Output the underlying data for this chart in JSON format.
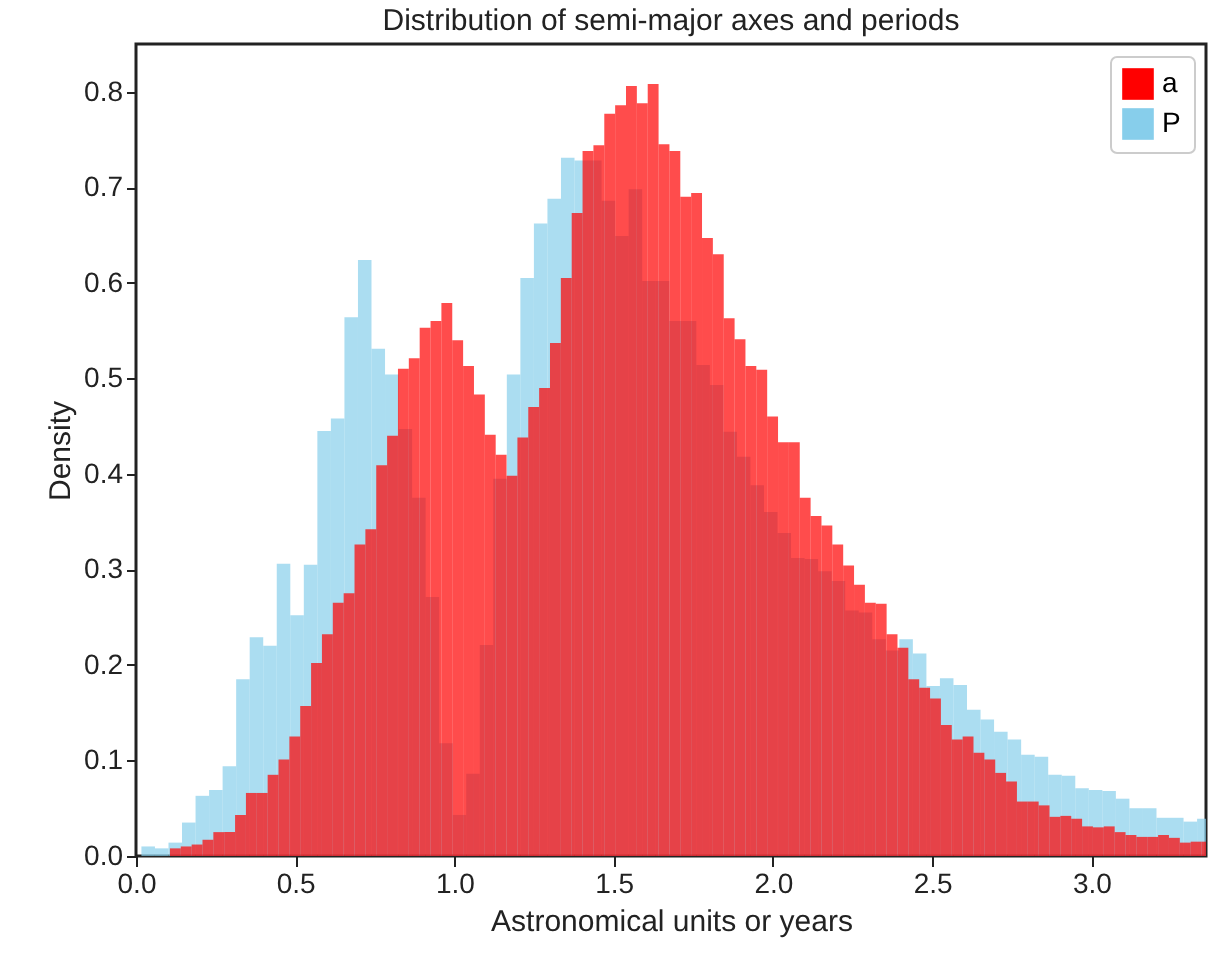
{
  "chart_data": {
    "type": "histogram",
    "title": "Distribution of semi-major axes and periods",
    "xlabel": "Astronomical units or years",
    "ylabel": "Density",
    "xlim": [
      0,
      3.36
    ],
    "ylim": [
      0,
      0.85
    ],
    "xticks": [
      {
        "value": 0,
        "label": "0.0"
      },
      {
        "value": 0.5,
        "label": "0.5"
      },
      {
        "value": 1,
        "label": "1.0"
      },
      {
        "value": 1.5,
        "label": "1.5"
      },
      {
        "value": 2,
        "label": "2.0"
      },
      {
        "value": 2.5,
        "label": "2.5"
      },
      {
        "value": 3,
        "label": "3.0"
      }
    ],
    "yticks": [
      {
        "value": 0,
        "label": "0.0"
      },
      {
        "value": 0.1,
        "label": "0.1"
      },
      {
        "value": 0.2,
        "label": "0.2"
      },
      {
        "value": 0.3,
        "label": "0.3"
      },
      {
        "value": 0.4,
        "label": "0.4"
      },
      {
        "value": 0.5,
        "label": "0.5"
      },
      {
        "value": 0.6,
        "label": "0.6"
      },
      {
        "value": 0.7,
        "label": "0.7"
      },
      {
        "value": 0.8,
        "label": "0.8"
      }
    ],
    "grid": false,
    "legend": "top right",
    "bins": [
      0.1065,
      0.1406,
      0.1747,
      0.2088,
      0.2429,
      0.277,
      0.3111,
      0.3452,
      0.3793,
      0.4134,
      0.4475,
      0.4816,
      0.5157,
      0.5498,
      0.5839,
      0.618,
      0.6521,
      0.6862,
      0.7203,
      0.7544,
      0.7885,
      0.8226,
      0.8567,
      0.8908,
      0.9249,
      0.959,
      0.9931,
      1.0272,
      1.0613,
      1.0954,
      1.1295,
      1.1636,
      1.1977,
      1.2318,
      1.2659,
      1.3,
      1.3341,
      1.3682,
      1.4023,
      1.4364,
      1.4705,
      1.5046,
      1.5387,
      1.5728,
      1.6069,
      1.641,
      1.6751,
      1.7092,
      1.7433,
      1.7774,
      1.8115,
      1.8456,
      1.8797,
      1.9138,
      1.9479,
      1.982,
      2.0161,
      2.0502,
      2.0843,
      2.1184,
      2.1525,
      2.1866,
      2.2207,
      2.2548,
      2.2889,
      2.323,
      2.3571,
      2.3912,
      2.4253,
      2.4594,
      2.4935,
      2.5276,
      2.5617,
      2.5958,
      2.6299,
      2.664,
      2.6981,
      2.7322,
      2.7663,
      2.8004,
      2.8345,
      2.8686,
      2.9027,
      2.9368,
      2.9709,
      3.005,
      3.0391,
      3.0732,
      3.1073,
      3.1414,
      3.1755,
      3.2096,
      3.2437,
      3.2778,
      3.3119,
      3.346,
      3.36
    ],
    "series": [
      {
        "name": "a",
        "color": "#ff0000",
        "values": [
          0.008,
          0.01,
          0.012,
          0.017,
          0.025,
          0.025,
          0.043,
          0.066,
          0.066,
          0.085,
          0.101,
          0.125,
          0.157,
          0.202,
          0.232,
          0.265,
          0.275,
          0.326,
          0.342,
          0.409,
          0.44,
          0.51,
          0.521,
          0.553,
          0.56,
          0.579,
          0.54,
          0.513,
          0.483,
          0.441,
          0.42,
          0.398,
          0.438,
          0.47,
          0.49,
          0.537,
          0.605,
          0.673,
          0.738,
          0.744,
          0.777,
          0.786,
          0.806,
          0.788,
          0.808,
          0.745,
          0.738,
          0.69,
          0.694,
          0.647,
          0.63,
          0.563,
          0.541,
          0.513,
          0.509,
          0.46,
          0.433,
          0.433,
          0.375,
          0.356,
          0.346,
          0.326,
          0.304,
          0.284,
          0.265,
          0.264,
          0.232,
          0.218,
          0.185,
          0.176,
          0.165,
          0.137,
          0.122,
          0.125,
          0.108,
          0.101,
          0.087,
          0.078,
          0.057,
          0.057,
          0.053,
          0.041,
          0.042,
          0.039,
          0.031,
          0.03,
          0.031,
          0.025,
          0.022,
          0.02,
          0.02,
          0.022,
          0.019,
          0.014,
          0.015,
          0.015
        ]
      },
      {
        "name": "P",
        "color": "#87ceeb",
        "bins": [
          0.017,
          0.0595,
          0.102,
          0.1445,
          0.187,
          0.2295,
          0.272,
          0.3145,
          0.357,
          0.3995,
          0.442,
          0.4845,
          0.527,
          0.5695,
          0.612,
          0.6545,
          0.697,
          0.7395,
          0.782,
          0.8245,
          0.867,
          0.9095,
          0.952,
          0.9945,
          1.037,
          1.0795,
          1.122,
          1.1645,
          1.207,
          1.2495,
          1.292,
          1.3345,
          1.377,
          1.4195,
          1.462,
          1.5045,
          1.547,
          1.5895,
          1.632,
          1.6745,
          1.717,
          1.7595,
          1.802,
          1.8445,
          1.887,
          1.9295,
          1.972,
          2.0145,
          2.057,
          2.0995,
          2.142,
          2.1845,
          2.227,
          2.2695,
          2.312,
          2.3545,
          2.397,
          2.4395,
          2.482,
          2.5245,
          2.567,
          2.6095,
          2.652,
          2.6945,
          2.737,
          2.7795,
          2.822,
          2.8645,
          2.907,
          2.9495,
          2.992,
          3.0345,
          3.077,
          3.1195,
          3.162,
          3.2045,
          3.247,
          3.2895,
          3.332,
          3.36
        ],
        "values": [
          0.01,
          0.008,
          0.014,
          0.035,
          0.063,
          0.069,
          0.094,
          0.185,
          0.229,
          0.22,
          0.306,
          0.252,
          0.305,
          0.445,
          0.458,
          0.564,
          0.624,
          0.531,
          0.504,
          0.447,
          0.375,
          0.271,
          0.118,
          0.043,
          0.086,
          0.221,
          0.395,
          0.504,
          0.605,
          0.662,
          0.688,
          0.731,
          0.728,
          0.728,
          0.686,
          0.649,
          0.698,
          0.602,
          0.602,
          0.56,
          0.56,
          0.514,
          0.493,
          0.444,
          0.418,
          0.388,
          0.36,
          0.338,
          0.312,
          0.311,
          0.298,
          0.288,
          0.257,
          0.255,
          0.227,
          0.215,
          0.227,
          0.212,
          0.178,
          0.186,
          0.179,
          0.153,
          0.143,
          0.13,
          0.122,
          0.106,
          0.104,
          0.085,
          0.084,
          0.071,
          0.069,
          0.068,
          0.06,
          0.05,
          0.05,
          0.04,
          0.04,
          0.036,
          0.039
        ]
      }
    ]
  }
}
